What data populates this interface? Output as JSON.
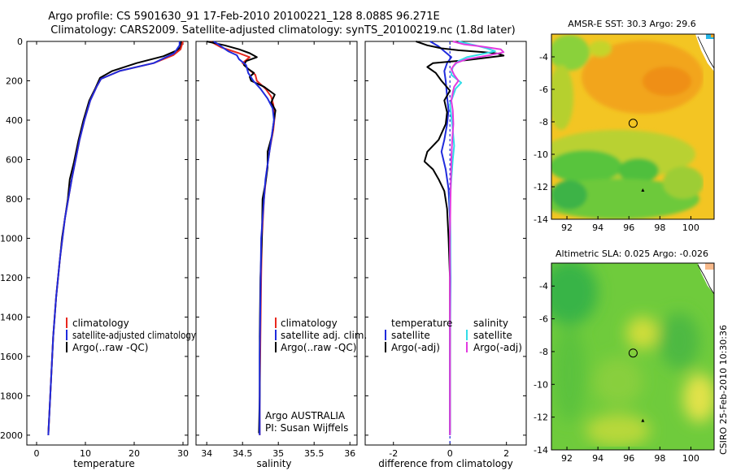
{
  "title": {
    "line1": "Argo profile: CS 5901630_91 17-Feb-2010 20100221_128 8.088S 96.271E",
    "line2": "Climatology: CARS2009. Satellite-adjusted climatology: synTS_20100219.nc (1.8d later)"
  },
  "colors": {
    "climatology": "#e8281e",
    "satellite": "#1f2bdc",
    "argo": "#000000",
    "sat_salinity": "#33dde8",
    "argo_salinity": "#e23be0"
  },
  "depth_axis": {
    "ylim": [
      0,
      2050
    ],
    "ticks": [
      0,
      200,
      400,
      600,
      800,
      1000,
      1200,
      1400,
      1600,
      1800,
      2000
    ]
  },
  "chart_data": [
    {
      "type": "line",
      "name": "temperature-profile",
      "xlabel": "temperature",
      "xlim": [
        -2,
        31
      ],
      "xticks": [
        0,
        10,
        20,
        30
      ],
      "legend": [
        "climatology",
        "satellite-adjusted climatology",
        "Argo(..raw -QC)"
      ],
      "series": [
        {
          "name": "climatology",
          "points": [
            [
              30,
              0
            ],
            [
              29.5,
              40
            ],
            [
              28,
              70
            ],
            [
              24,
              110
            ],
            [
              17,
              150
            ],
            [
              13.2,
              190
            ],
            [
              12.3,
              230
            ],
            [
              11,
              300
            ],
            [
              9.8,
              400
            ],
            [
              8.8,
              500
            ],
            [
              8,
              600
            ],
            [
              7.2,
              700
            ],
            [
              6.5,
              800
            ],
            [
              5.8,
              900
            ],
            [
              5.3,
              1000
            ],
            [
              4.8,
              1100
            ],
            [
              4.4,
              1200
            ],
            [
              4,
              1300
            ],
            [
              3.7,
              1400
            ],
            [
              3.4,
              1500
            ],
            [
              3.2,
              1600
            ],
            [
              3,
              1700
            ],
            [
              2.8,
              1800
            ],
            [
              2.6,
              1900
            ],
            [
              2.4,
              2000
            ]
          ]
        },
        {
          "name": "satellite-adjusted climatology",
          "points": [
            [
              29.3,
              0
            ],
            [
              29.3,
              20
            ],
            [
              28.2,
              60
            ],
            [
              24,
              110
            ],
            [
              17,
              150
            ],
            [
              13.2,
              190
            ],
            [
              12.3,
              230
            ],
            [
              11,
              300
            ],
            [
              9.8,
              400
            ],
            [
              8.8,
              500
            ],
            [
              8,
              600
            ],
            [
              7.2,
              700
            ],
            [
              6.5,
              800
            ],
            [
              5.8,
              900
            ],
            [
              5.3,
              1000
            ],
            [
              4.8,
              1100
            ],
            [
              4.4,
              1200
            ],
            [
              4,
              1300
            ],
            [
              3.7,
              1400
            ],
            [
              3.4,
              1500
            ],
            [
              3.2,
              1600
            ],
            [
              3,
              1700
            ],
            [
              2.8,
              1800
            ],
            [
              2.6,
              1900
            ],
            [
              2.4,
              2000
            ]
          ]
        },
        {
          "name": "Argo(..raw -QC)",
          "points": [
            [
              29.6,
              0
            ],
            [
              29.5,
              30
            ],
            [
              28.8,
              45
            ],
            [
              26,
              75
            ],
            [
              20.5,
              110
            ],
            [
              15.5,
              150
            ],
            [
              13,
              185
            ],
            [
              12,
              240
            ],
            [
              10.8,
              300
            ],
            [
              9.6,
              400
            ],
            [
              8.6,
              500
            ],
            [
              7.6,
              620
            ],
            [
              6.8,
              700
            ],
            [
              6.4,
              800
            ],
            [
              5.8,
              900
            ],
            [
              5.2,
              1000
            ],
            [
              4.8,
              1100
            ],
            [
              4.4,
              1200
            ],
            [
              4,
              1300
            ],
            [
              3.7,
              1400
            ],
            [
              3.4,
              1500
            ],
            [
              3.2,
              1600
            ],
            [
              3,
              1700
            ],
            [
              2.8,
              1800
            ],
            [
              2.6,
              1900
            ],
            [
              2.4,
              1990
            ]
          ]
        }
      ]
    },
    {
      "type": "line",
      "name": "salinity-profile",
      "xlabel": "salinity",
      "xlim": [
        33.85,
        36.1
      ],
      "xticks": [
        34,
        34.5,
        35,
        35.5,
        36
      ],
      "tick_labels": [
        "34",
        "34.5",
        "35",
        "35.5",
        "36"
      ],
      "legend": [
        "climatology",
        "satellite adj. clim.",
        "Argo(..raw -QC)"
      ],
      "annotation": [
        "Argo AUSTRALIA",
        "PI: Susan Wijffels"
      ],
      "series": [
        {
          "name": "climatology",
          "points": [
            [
              34.05,
              0
            ],
            [
              34.2,
              30
            ],
            [
              34.45,
              60
            ],
            [
              34.6,
              80
            ],
            [
              34.5,
              110
            ],
            [
              34.58,
              140
            ],
            [
              34.68,
              170
            ],
            [
              34.7,
              200
            ],
            [
              34.82,
              240
            ],
            [
              34.9,
              280
            ],
            [
              34.93,
              320
            ],
            [
              34.95,
              380
            ],
            [
              34.93,
              450
            ],
            [
              34.88,
              550
            ],
            [
              34.84,
              650
            ],
            [
              34.8,
              800
            ],
            [
              34.77,
              1000
            ],
            [
              34.76,
              1200
            ],
            [
              34.75,
              1500
            ],
            [
              34.74,
              1800
            ],
            [
              34.74,
              2000
            ]
          ]
        },
        {
          "name": "satellite adj. clim.",
          "points": [
            [
              34.1,
              0
            ],
            [
              34.2,
              25
            ],
            [
              34.3,
              50
            ],
            [
              34.42,
              70
            ],
            [
              34.45,
              90
            ],
            [
              34.55,
              120
            ],
            [
              34.58,
              160
            ],
            [
              34.65,
              200
            ],
            [
              34.75,
              240
            ],
            [
              34.85,
              290
            ],
            [
              34.92,
              340
            ],
            [
              34.94,
              400
            ],
            [
              34.9,
              500
            ],
            [
              34.86,
              600
            ],
            [
              34.82,
              700
            ],
            [
              34.79,
              850
            ],
            [
              34.76,
              1000
            ],
            [
              34.75,
              1300
            ],
            [
              34.74,
              1600
            ],
            [
              34.74,
              2000
            ]
          ]
        },
        {
          "name": "Argo(..raw -QC)",
          "points": [
            [
              34,
              0
            ],
            [
              34.25,
              20
            ],
            [
              34.45,
              40
            ],
            [
              34.6,
              60
            ],
            [
              34.7,
              80
            ],
            [
              34.55,
              100
            ],
            [
              34.52,
              120
            ],
            [
              34.58,
              140
            ],
            [
              34.66,
              160
            ],
            [
              34.6,
              180
            ],
            [
              34.62,
              200
            ],
            [
              34.8,
              230
            ],
            [
              34.95,
              270
            ],
            [
              34.9,
              310
            ],
            [
              34.96,
              350
            ],
            [
              34.94,
              400
            ],
            [
              34.91,
              480
            ],
            [
              34.85,
              560
            ],
            [
              34.85,
              640
            ],
            [
              34.82,
              720
            ],
            [
              34.78,
              800
            ],
            [
              34.77,
              1000
            ],
            [
              34.75,
              1200
            ],
            [
              34.74,
              1500
            ],
            [
              34.74,
              1800
            ],
            [
              34.73,
              1990
            ]
          ]
        }
      ]
    },
    {
      "type": "line",
      "name": "difference-from-climatology",
      "xlabel": "difference from climatology",
      "xlim": [
        -3,
        2.7
      ],
      "xticks": [
        -2,
        0,
        2
      ],
      "legend_left_header": "temperature",
      "legend_right_header": "salinity",
      "legend_left": [
        "satellite",
        "Argo(-adj)"
      ],
      "legend_right": [
        "satellite",
        "Argo(-adj)"
      ],
      "series": [
        {
          "name": "temperature satellite",
          "points": [
            [
              -0.7,
              0
            ],
            [
              -0.4,
              25
            ],
            [
              -0.2,
              50
            ],
            [
              0.05,
              80
            ],
            [
              -0.1,
              110
            ],
            [
              -0.2,
              150
            ],
            [
              -0.15,
              200
            ],
            [
              -0.1,
              280
            ],
            [
              -0.05,
              350
            ],
            [
              -0.1,
              420
            ],
            [
              -0.2,
              500
            ],
            [
              -0.3,
              560
            ],
            [
              -0.15,
              650
            ],
            [
              -0.05,
              750
            ],
            [
              0,
              900
            ],
            [
              0.02,
              1200
            ],
            [
              0,
              1600
            ],
            [
              0,
              2000
            ]
          ]
        },
        {
          "name": "temperature Argo(-adj)",
          "points": [
            [
              -1.2,
              0
            ],
            [
              -0.8,
              20
            ],
            [
              -0.3,
              35
            ],
            [
              0.3,
              45
            ],
            [
              1.2,
              55
            ],
            [
              1.7,
              62
            ],
            [
              1.9,
              72
            ],
            [
              0.6,
              95
            ],
            [
              -0.6,
              110
            ],
            [
              -0.8,
              130
            ],
            [
              -0.5,
              160
            ],
            [
              -0.3,
              200
            ],
            [
              0,
              250
            ],
            [
              -0.2,
              300
            ],
            [
              -0.1,
              360
            ],
            [
              -0.15,
              420
            ],
            [
              -0.4,
              500
            ],
            [
              -0.8,
              560
            ],
            [
              -0.9,
              610
            ],
            [
              -0.6,
              650
            ],
            [
              -0.4,
              700
            ],
            [
              -0.2,
              760
            ],
            [
              -0.1,
              850
            ],
            [
              -0.05,
              1000
            ],
            [
              0,
              1200
            ],
            [
              0,
              1600
            ],
            [
              0,
              1990
            ]
          ]
        },
        {
          "name": "salinity satellite",
          "points": [
            [
              0.3,
              0
            ],
            [
              0.9,
              20
            ],
            [
              1.3,
              35
            ],
            [
              1.6,
              50
            ],
            [
              1.1,
              65
            ],
            [
              0.6,
              80
            ],
            [
              0.3,
              100
            ],
            [
              0.1,
              130
            ],
            [
              0.05,
              170
            ],
            [
              0.4,
              210
            ],
            [
              0.2,
              240
            ],
            [
              0.1,
              280
            ],
            [
              0,
              320
            ],
            [
              0.05,
              380
            ],
            [
              0.1,
              450
            ],
            [
              0.15,
              530
            ],
            [
              0.1,
              600
            ],
            [
              0.05,
              700
            ],
            [
              0,
              800
            ],
            [
              0.02,
              1000
            ],
            [
              0,
              1500
            ],
            [
              0,
              2000
            ]
          ]
        },
        {
          "name": "salinity Argo(-adj)",
          "points": [
            [
              0.1,
              0
            ],
            [
              0.5,
              15
            ],
            [
              1.1,
              25
            ],
            [
              1.8,
              40
            ],
            [
              1.9,
              55
            ],
            [
              1.4,
              70
            ],
            [
              0.6,
              90
            ],
            [
              0.2,
              110
            ],
            [
              0.05,
              140
            ],
            [
              0.15,
              170
            ],
            [
              0.3,
              200
            ],
            [
              0.15,
              230
            ],
            [
              0.1,
              260
            ],
            [
              0.05,
              300
            ],
            [
              0.1,
              350
            ],
            [
              0.12,
              420
            ],
            [
              0.08,
              500
            ],
            [
              0.05,
              600
            ],
            [
              0.02,
              800
            ],
            [
              0,
              1000
            ],
            [
              0,
              1500
            ],
            [
              0,
              2000
            ]
          ]
        }
      ]
    },
    {
      "type": "heatmap",
      "name": "sst-map",
      "title": "AMSR-E SST: 30.3 Argo: 29.6",
      "xlim": [
        91,
        101.5
      ],
      "ylim": [
        -14,
        -2.6
      ],
      "xticks": [
        92,
        94,
        96,
        98,
        100
      ],
      "yticks": [
        -4,
        -6,
        -8,
        -10,
        -12,
        -14
      ],
      "argo_position": [
        96.271,
        -8.088
      ],
      "marker_triangle": [
        96.9,
        -12.2
      ]
    },
    {
      "type": "heatmap",
      "name": "sla-map",
      "title": "Altimetric SLA: 0.025 Argo: -0.026",
      "xlim": [
        91,
        101.5
      ],
      "ylim": [
        -14,
        -2.6
      ],
      "xticks": [
        92,
        94,
        96,
        98,
        100
      ],
      "yticks": [
        -4,
        -6,
        -8,
        -10,
        -12,
        -14
      ],
      "argo_position": [
        96.271,
        -8.088
      ],
      "marker_triangle": [
        96.9,
        -12.2
      ]
    }
  ],
  "side_stamp": "CSIRO 25-Feb-2010 10:30:36"
}
